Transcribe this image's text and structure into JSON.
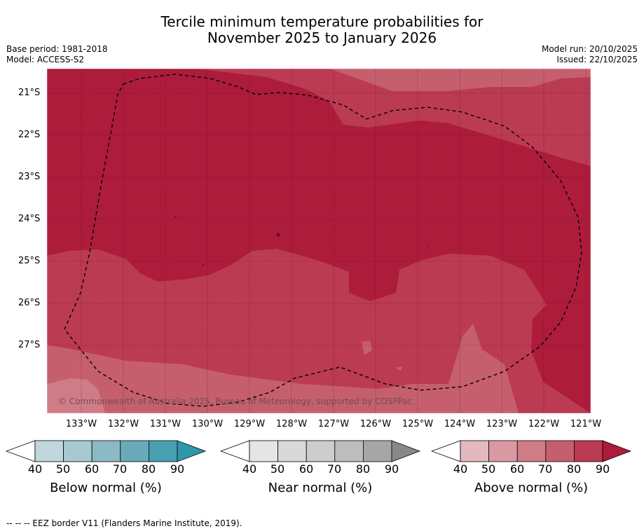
{
  "title": {
    "line1": "Tercile minimum temperature probabilities for",
    "line2": "November 2025 to January 2026"
  },
  "meta": {
    "base_period": "Base period: 1981-2018",
    "model": "Model: ACCESS-S2",
    "model_run": "Model run: 20/10/2025",
    "issued": "Issued: 22/10/2025"
  },
  "map": {
    "copyright": "© Commonwealth of Australia 2025, Bureau of Meteorology, supported by COSPPac",
    "lat_labels": [
      "21°S",
      "22°S",
      "23°S",
      "24°S",
      "25°S",
      "26°S",
      "27°S"
    ],
    "lon_labels": [
      "133°W",
      "132°W",
      "131°W",
      "130°W",
      "129°W",
      "128°W",
      "127°W",
      "126°W",
      "125°W",
      "124°W",
      "123°W",
      "122°W",
      "121°W"
    ]
  },
  "legends": [
    {
      "title": "Below normal (%)",
      "ticks": [
        "40",
        "50",
        "60",
        "70",
        "80",
        "90"
      ],
      "colors": [
        "#c0d7de",
        "#a8c9d1",
        "#8bb9c5",
        "#6aaab9",
        "#48a0b0",
        "#2e97a9"
      ]
    },
    {
      "title": "Near normal (%)",
      "ticks": [
        "40",
        "50",
        "60",
        "70",
        "80",
        "90"
      ],
      "colors": [
        "#e5e5e5",
        "#d9d9d9",
        "#cdcdcd",
        "#bdbdbd",
        "#a6a6a6",
        "#888888"
      ]
    },
    {
      "title": "Above normal (%)",
      "ticks": [
        "40",
        "50",
        "60",
        "70",
        "80",
        "90"
      ],
      "colors": [
        "#e3b8bf",
        "#da99a2",
        "#d07c87",
        "#c55f6e",
        "#bb3b53",
        "#ad1c3b"
      ]
    }
  ],
  "footer": "--  --  -- EEZ border V11 (Flanders Marine Institute, 2019)."
}
